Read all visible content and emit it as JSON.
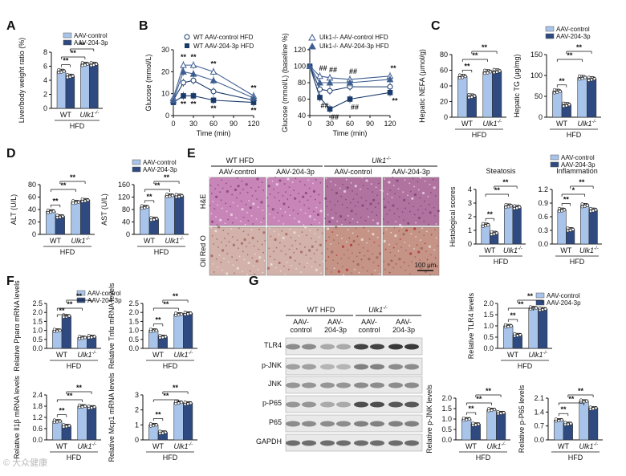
{
  "colors": {
    "light": "#a8c4ea",
    "dark": "#2e4a80",
    "wt_line": "#1a3a6a",
    "ko_line": "#3f5f92"
  },
  "panel_labels": [
    "A",
    "B",
    "C",
    "D",
    "E",
    "F",
    "G"
  ],
  "legend": {
    "control": "AAV-control",
    "treated": "AAV-204-3p"
  },
  "diet_label": "HFD",
  "group_labels": {
    "wt": "WT",
    "ko": "Ulk1",
    "ko_sup": "-/-"
  },
  "chart_data": [
    {
      "id": "A",
      "type": "bar",
      "ylabel": "Liver/body weight ratio (%)",
      "ylim": [
        0,
        8
      ],
      "yticks": [
        0,
        2,
        4,
        6,
        8
      ],
      "series": [
        {
          "name": "AAV-control",
          "values": [
            5.3,
            6.3
          ]
        },
        {
          "name": "AAV-204-3p",
          "values": [
            4.6,
            6.3
          ]
        }
      ],
      "sig": [
        "**",
        "**",
        "**"
      ]
    },
    {
      "id": "B1",
      "type": "line",
      "ylabel": "Glucose (mmol/L)",
      "xlabel": "Time (min)",
      "x": [
        0,
        15,
        30,
        60,
        120
      ],
      "xticks": [
        0,
        30,
        60,
        90,
        120
      ],
      "ylim": [
        0,
        30
      ],
      "yticks": [
        0,
        10,
        20,
        30
      ],
      "series": [
        {
          "name": "WT AAV-control HFD",
          "values": [
            7,
            15,
            16,
            11,
            7
          ]
        },
        {
          "name": "WT AAV-204-3p HFD",
          "values": [
            6,
            9,
            9,
            7,
            6
          ]
        },
        {
          "name": "Ulk1-/- AAV-control HFD",
          "values": [
            8,
            23,
            23,
            20,
            9
          ]
        },
        {
          "name": "Ulk1-/- AAV-204-3p HFD",
          "values": [
            7,
            20,
            19,
            16,
            8
          ]
        }
      ],
      "sig": [
        "**",
        "**",
        "**",
        "**",
        "**",
        "**",
        "**",
        "**",
        "##",
        "##",
        "##"
      ]
    },
    {
      "id": "B2",
      "type": "line",
      "ylabel": "Glucose (mmol/L) (baseline %)",
      "xlabel": "Time (min)",
      "x": [
        0,
        15,
        30,
        60,
        120
      ],
      "xticks": [
        0,
        30,
        60,
        90,
        120
      ],
      "ylim": [
        40,
        120
      ],
      "yticks": [
        40,
        60,
        80,
        100,
        120
      ],
      "legend": [
        {
          "name": "Ulk1-/- AAV-control HFD"
        },
        {
          "name": "Ulk1-/- AAV-204-3p HFD"
        }
      ],
      "series": [
        {
          "name": "WT AAV-control",
          "values": [
            100,
            72,
            70,
            75,
            75
          ]
        },
        {
          "name": "WT AAV-204-3p",
          "values": [
            100,
            62,
            48,
            60,
            68
          ]
        },
        {
          "name": "Ulk1-/- AAV-control",
          "values": [
            100,
            88,
            86,
            84,
            88
          ]
        },
        {
          "name": "Ulk1-/- AAV-204-3p",
          "values": [
            100,
            80,
            80,
            80,
            84
          ]
        }
      ],
      "sig": [
        "##",
        "##",
        "##",
        "##",
        "##",
        "##",
        "**",
        "**",
        "**",
        "*",
        "*",
        "*"
      ]
    },
    {
      "id": "C1",
      "type": "bar",
      "ylabel": "Hepatic NEFA (μmol/g)",
      "ylim": [
        0,
        80
      ],
      "yticks": [
        0,
        20,
        40,
        60,
        80
      ],
      "series": [
        {
          "name": "AAV-control",
          "values": [
            52,
            58
          ]
        },
        {
          "name": "AAV-204-3p",
          "values": [
            27,
            59
          ]
        }
      ],
      "sig": [
        "**",
        "**",
        "**"
      ]
    },
    {
      "id": "C2",
      "type": "bar",
      "ylabel": "Hepatic TG (μg/mg)",
      "ylim": [
        0,
        150
      ],
      "yticks": [
        0,
        50,
        100,
        150
      ],
      "series": [
        {
          "name": "AAV-control",
          "values": [
            62,
            95
          ]
        },
        {
          "name": "AAV-204-3p",
          "values": [
            30,
            92
          ]
        }
      ],
      "sig": [
        "**",
        "**",
        "**"
      ]
    },
    {
      "id": "D1",
      "type": "bar",
      "ylabel": "ALT (U/L)",
      "ylim": [
        0,
        80
      ],
      "yticks": [
        0,
        20,
        40,
        60,
        80
      ],
      "series": [
        {
          "name": "AAV-control",
          "values": [
            37,
            52
          ]
        },
        {
          "name": "AAV-204-3p",
          "values": [
            29,
            55
          ]
        }
      ],
      "sig": [
        "**",
        "**",
        "**"
      ]
    },
    {
      "id": "D2",
      "type": "bar",
      "ylabel": "AST (U/L)",
      "ylim": [
        0,
        160
      ],
      "yticks": [
        0,
        40,
        80,
        120,
        160
      ],
      "series": [
        {
          "name": "AAV-control",
          "values": [
            88,
            125
          ]
        },
        {
          "name": "AAV-204-3p",
          "values": [
            50,
            124
          ]
        }
      ],
      "sig": [
        "**",
        "**",
        "**"
      ]
    },
    {
      "id": "E1",
      "type": "bar",
      "title": "Steatosis",
      "ylabel": "Histological scores",
      "ylim": [
        0,
        4
      ],
      "yticks": [
        0,
        1,
        2,
        3,
        4
      ],
      "series": [
        {
          "name": "AAV-control",
          "values": [
            1.4,
            2.8
          ]
        },
        {
          "name": "AAV-204-3p",
          "values": [
            0.8,
            2.7
          ]
        }
      ],
      "sig": [
        "**",
        "**",
        "**"
      ]
    },
    {
      "id": "E2",
      "type": "bar",
      "title": "Inflammation",
      "ylabel": "",
      "ylim": [
        0,
        1.2
      ],
      "yticks": [
        0.0,
        0.3,
        0.6,
        0.9,
        1.2
      ],
      "series": [
        {
          "name": "AAV-control",
          "values": [
            0.75,
            0.85
          ]
        },
        {
          "name": "AAV-204-3p",
          "values": [
            0.32,
            0.75
          ]
        }
      ],
      "sig": [
        "**",
        "*",
        "**"
      ]
    },
    {
      "id": "F1",
      "type": "bar",
      "ylabel": "Relative Pparα mRNA levels",
      "ylim": [
        0,
        2.5
      ],
      "yticks": [
        0.0,
        0.5,
        1.0,
        1.5,
        2.0,
        2.5
      ],
      "series": [
        {
          "name": "AAV-control",
          "values": [
            1.0,
            0.6
          ]
        },
        {
          "name": "AAV-204-3p",
          "values": [
            1.8,
            0.65
          ]
        }
      ],
      "sig": [
        "**",
        "**",
        "**"
      ]
    },
    {
      "id": "F2",
      "type": "bar",
      "ylabel": "Relative Tnfα mRNA levels",
      "ylim": [
        0,
        2.5
      ],
      "yticks": [
        0.0,
        0.5,
        1.0,
        1.5,
        2.0,
        2.5
      ],
      "series": [
        {
          "name": "AAV-control",
          "values": [
            1.0,
            1.9
          ]
        },
        {
          "name": "AAV-204-3p",
          "values": [
            0.65,
            1.95
          ]
        }
      ],
      "sig": [
        "**",
        "**",
        "**"
      ]
    },
    {
      "id": "F3",
      "type": "bar",
      "ylabel": "Relative Il1β mRNA levels",
      "ylim": [
        0,
        2.4
      ],
      "yticks": [
        0.0,
        0.6,
        1.2,
        1.8,
        2.4
      ],
      "series": [
        {
          "name": "AAV-control",
          "values": [
            1.0,
            1.8
          ]
        },
        {
          "name": "AAV-204-3p",
          "values": [
            0.75,
            1.75
          ]
        }
      ],
      "sig": [
        "**",
        "**",
        "**"
      ]
    },
    {
      "id": "F4",
      "type": "bar",
      "ylabel": "Relative Mcp1 mRNA levels",
      "ylim": [
        0,
        3
      ],
      "yticks": [
        0,
        1,
        2,
        3
      ],
      "series": [
        {
          "name": "AAV-control",
          "values": [
            1.0,
            2.5
          ]
        },
        {
          "name": "AAV-204-3p",
          "values": [
            0.5,
            2.45
          ]
        }
      ],
      "sig": [
        "**",
        "**",
        "**"
      ]
    },
    {
      "id": "G1",
      "type": "bar",
      "ylabel": "Relative TLR4 levels",
      "ylim": [
        0,
        2.0
      ],
      "yticks": [
        0.0,
        0.5,
        1.0,
        1.5,
        2.0
      ],
      "series": [
        {
          "name": "AAV-control",
          "values": [
            1.0,
            1.8
          ]
        },
        {
          "name": "AAV-204-3p",
          "values": [
            0.6,
            1.75
          ]
        }
      ],
      "sig": [
        "**",
        "**",
        "**"
      ]
    },
    {
      "id": "G2",
      "type": "bar",
      "ylabel": "Relative p-JNK levels",
      "ylim": [
        0,
        2.0
      ],
      "yticks": [
        0.0,
        0.5,
        1.0,
        1.5,
        2.0
      ],
      "series": [
        {
          "name": "AAV-control",
          "values": [
            1.0,
            1.45
          ]
        },
        {
          "name": "AAV-204-3p",
          "values": [
            0.75,
            1.3
          ]
        }
      ],
      "sig": [
        "**",
        "**",
        "**"
      ]
    },
    {
      "id": "G3",
      "type": "bar",
      "ylabel": "Relative p-P65 levels",
      "ylim": [
        0,
        2.1
      ],
      "yticks": [
        0.0,
        0.7,
        1.4,
        2.1
      ],
      "series": [
        {
          "name": "AAV-control",
          "values": [
            1.0,
            1.95
          ]
        },
        {
          "name": "AAV-204-3p",
          "values": [
            0.82,
            1.6
          ]
        }
      ],
      "sig": [
        "**",
        "**",
        "**"
      ]
    }
  ],
  "histology": {
    "group_titles": [
      "WT HFD",
      "Ulk1-/- HFD"
    ],
    "columns": [
      "AAV-control",
      "AAV-204-3p",
      "AAV-control",
      "AAV-204-3p"
    ],
    "rows": [
      "H&E",
      "Oil Red O"
    ],
    "scale_bar": "100 μm"
  },
  "blot": {
    "group_titles": [
      "WT HFD",
      "Ulk1-/- HFD"
    ],
    "columns": [
      "AAV-\ncontrol",
      "AAV-\n204-3p",
      "AAV-\ncontrol",
      "AAV-\n204-3p"
    ],
    "rows": [
      "TLR4",
      "p-JNK",
      "JNK",
      "p-P65",
      "P65",
      "GAPDH"
    ]
  },
  "watermark": "© 大众健康"
}
